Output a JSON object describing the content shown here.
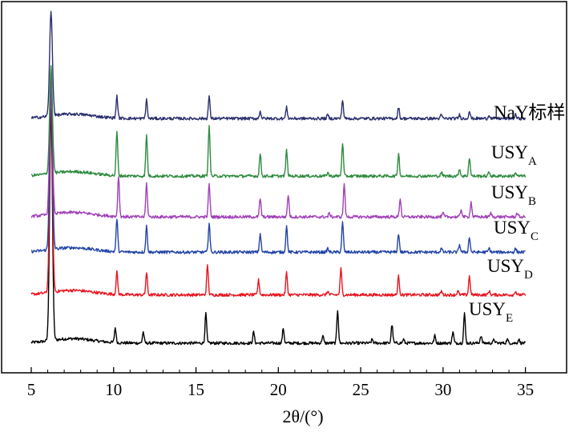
{
  "chart_data": {
    "type": "line",
    "title": "",
    "xlabel": "2θ/(°)",
    "ylabel": "",
    "xlim": [
      3.2,
      37.5
    ],
    "ylim": [
      0,
      1
    ],
    "x_ticks": [
      "5",
      "10",
      "15",
      "20",
      "25",
      "30",
      "35"
    ],
    "x_tick_values": [
      5,
      10,
      15,
      20,
      25,
      30,
      35
    ],
    "grid": false,
    "legend": "inline labels at right end of each trace",
    "series": [
      {
        "name": "NaY标样",
        "label_main": "NaY标样",
        "label_sub": "",
        "color": "#000000",
        "x_start": 5.0,
        "x_end": 35.0,
        "baseline": 0.08,
        "peaks": [
          [
            6.2,
            0.62
          ],
          [
            10.1,
            0.04
          ],
          [
            11.8,
            0.03
          ],
          [
            15.6,
            0.08
          ],
          [
            18.5,
            0.03
          ],
          [
            20.3,
            0.04
          ],
          [
            22.7,
            0.02
          ],
          [
            23.6,
            0.09
          ],
          [
            25.7,
            0.01
          ],
          [
            26.9,
            0.05
          ],
          [
            27.6,
            0.01
          ],
          [
            29.5,
            0.02
          ],
          [
            30.6,
            0.03
          ],
          [
            31.3,
            0.08
          ],
          [
            32.3,
            0.02
          ],
          [
            33.1,
            0.01
          ],
          [
            33.9,
            0.01
          ],
          [
            34.6,
            0.01
          ]
        ]
      },
      {
        "name": "USY_A",
        "label_main": "USY",
        "label_sub": "A",
        "color": "#e8141e",
        "x_start": 5.0,
        "x_end": 35.0,
        "baseline": 0.21,
        "peaks": [
          [
            6.2,
            0.55
          ],
          [
            10.2,
            0.06
          ],
          [
            12.0,
            0.06
          ],
          [
            15.7,
            0.08
          ],
          [
            18.8,
            0.04
          ],
          [
            20.5,
            0.06
          ],
          [
            23.0,
            0.01
          ],
          [
            23.8,
            0.07
          ],
          [
            27.3,
            0.05
          ],
          [
            29.9,
            0.01
          ],
          [
            30.9,
            0.01
          ],
          [
            31.6,
            0.05
          ],
          [
            32.8,
            0.01
          ],
          [
            34.4,
            0.01
          ]
        ]
      },
      {
        "name": "USY_B",
        "label_main": "USY",
        "label_sub": "B",
        "color": "#2244a8",
        "x_start": 5.0,
        "x_end": 35.0,
        "baseline": 0.325,
        "peaks": [
          [
            6.2,
            0.45
          ],
          [
            10.2,
            0.09
          ],
          [
            12.0,
            0.07
          ],
          [
            15.8,
            0.08
          ],
          [
            18.9,
            0.05
          ],
          [
            20.5,
            0.07
          ],
          [
            23.0,
            0.01
          ],
          [
            23.9,
            0.08
          ],
          [
            27.3,
            0.05
          ],
          [
            29.9,
            0.01
          ],
          [
            31.0,
            0.02
          ],
          [
            31.6,
            0.04
          ],
          [
            32.8,
            0.01
          ],
          [
            34.4,
            0.01
          ]
        ]
      },
      {
        "name": "USY_C",
        "label_main": "USY",
        "label_sub": "C",
        "color": "#a040b8",
        "x_start": 5.0,
        "x_end": 35.0,
        "baseline": 0.42,
        "peaks": [
          [
            6.2,
            0.37
          ],
          [
            10.3,
            0.11
          ],
          [
            12.0,
            0.09
          ],
          [
            15.8,
            0.09
          ],
          [
            18.9,
            0.05
          ],
          [
            20.6,
            0.06
          ],
          [
            23.1,
            0.01
          ],
          [
            24.0,
            0.09
          ],
          [
            27.4,
            0.05
          ],
          [
            30.0,
            0.01
          ],
          [
            31.1,
            0.02
          ],
          [
            31.7,
            0.04
          ],
          [
            32.9,
            0.01
          ],
          [
            34.5,
            0.01
          ]
        ]
      },
      {
        "name": "USY_D",
        "label_main": "USY",
        "label_sub": "D",
        "color": "#2e8b3f",
        "x_start": 5.0,
        "x_end": 35.0,
        "baseline": 0.53,
        "peaks": [
          [
            6.2,
            0.29
          ],
          [
            10.2,
            0.12
          ],
          [
            12.0,
            0.11
          ],
          [
            15.8,
            0.14
          ],
          [
            18.9,
            0.06
          ],
          [
            20.5,
            0.07
          ],
          [
            23.0,
            0.01
          ],
          [
            23.9,
            0.09
          ],
          [
            27.3,
            0.06
          ],
          [
            29.9,
            0.01
          ],
          [
            31.0,
            0.02
          ],
          [
            31.6,
            0.05
          ],
          [
            32.8,
            0.01
          ],
          [
            34.4,
            0.01
          ]
        ]
      },
      {
        "name": "USY_E",
        "label_main": "USY",
        "label_sub": "E",
        "color": "#2a2f6e",
        "x_start": 5.0,
        "x_end": 35.0,
        "baseline": 0.685,
        "peaks": [
          [
            6.2,
            0.28
          ],
          [
            10.2,
            0.06
          ],
          [
            12.0,
            0.05
          ],
          [
            15.8,
            0.06
          ],
          [
            18.9,
            0.02
          ],
          [
            20.5,
            0.03
          ],
          [
            23.0,
            0.01
          ],
          [
            23.9,
            0.05
          ],
          [
            27.3,
            0.03
          ],
          [
            29.9,
            0.01
          ],
          [
            31.0,
            0.01
          ],
          [
            31.6,
            0.02
          ],
          [
            32.8,
            0.01
          ],
          [
            34.4,
            0.01
          ]
        ]
      }
    ]
  }
}
